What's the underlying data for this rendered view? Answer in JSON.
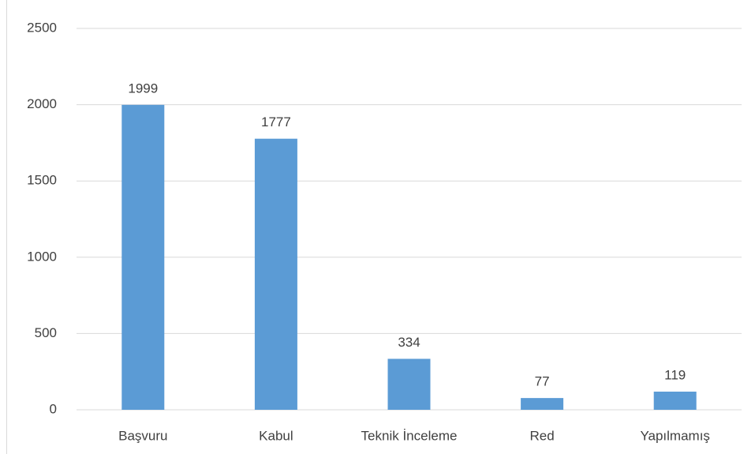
{
  "chart_data": {
    "type": "bar",
    "categories": [
      "Başvuru",
      "Kabul",
      "Teknik İnceleme",
      "Red",
      "Yapılmamış"
    ],
    "values": [
      1999,
      1777,
      334,
      77,
      119
    ],
    "color": "#5b9bd5",
    "ylim": [
      0,
      2500
    ],
    "yticks": [
      0,
      500,
      1000,
      1500,
      2000,
      2500
    ],
    "grid": true
  }
}
